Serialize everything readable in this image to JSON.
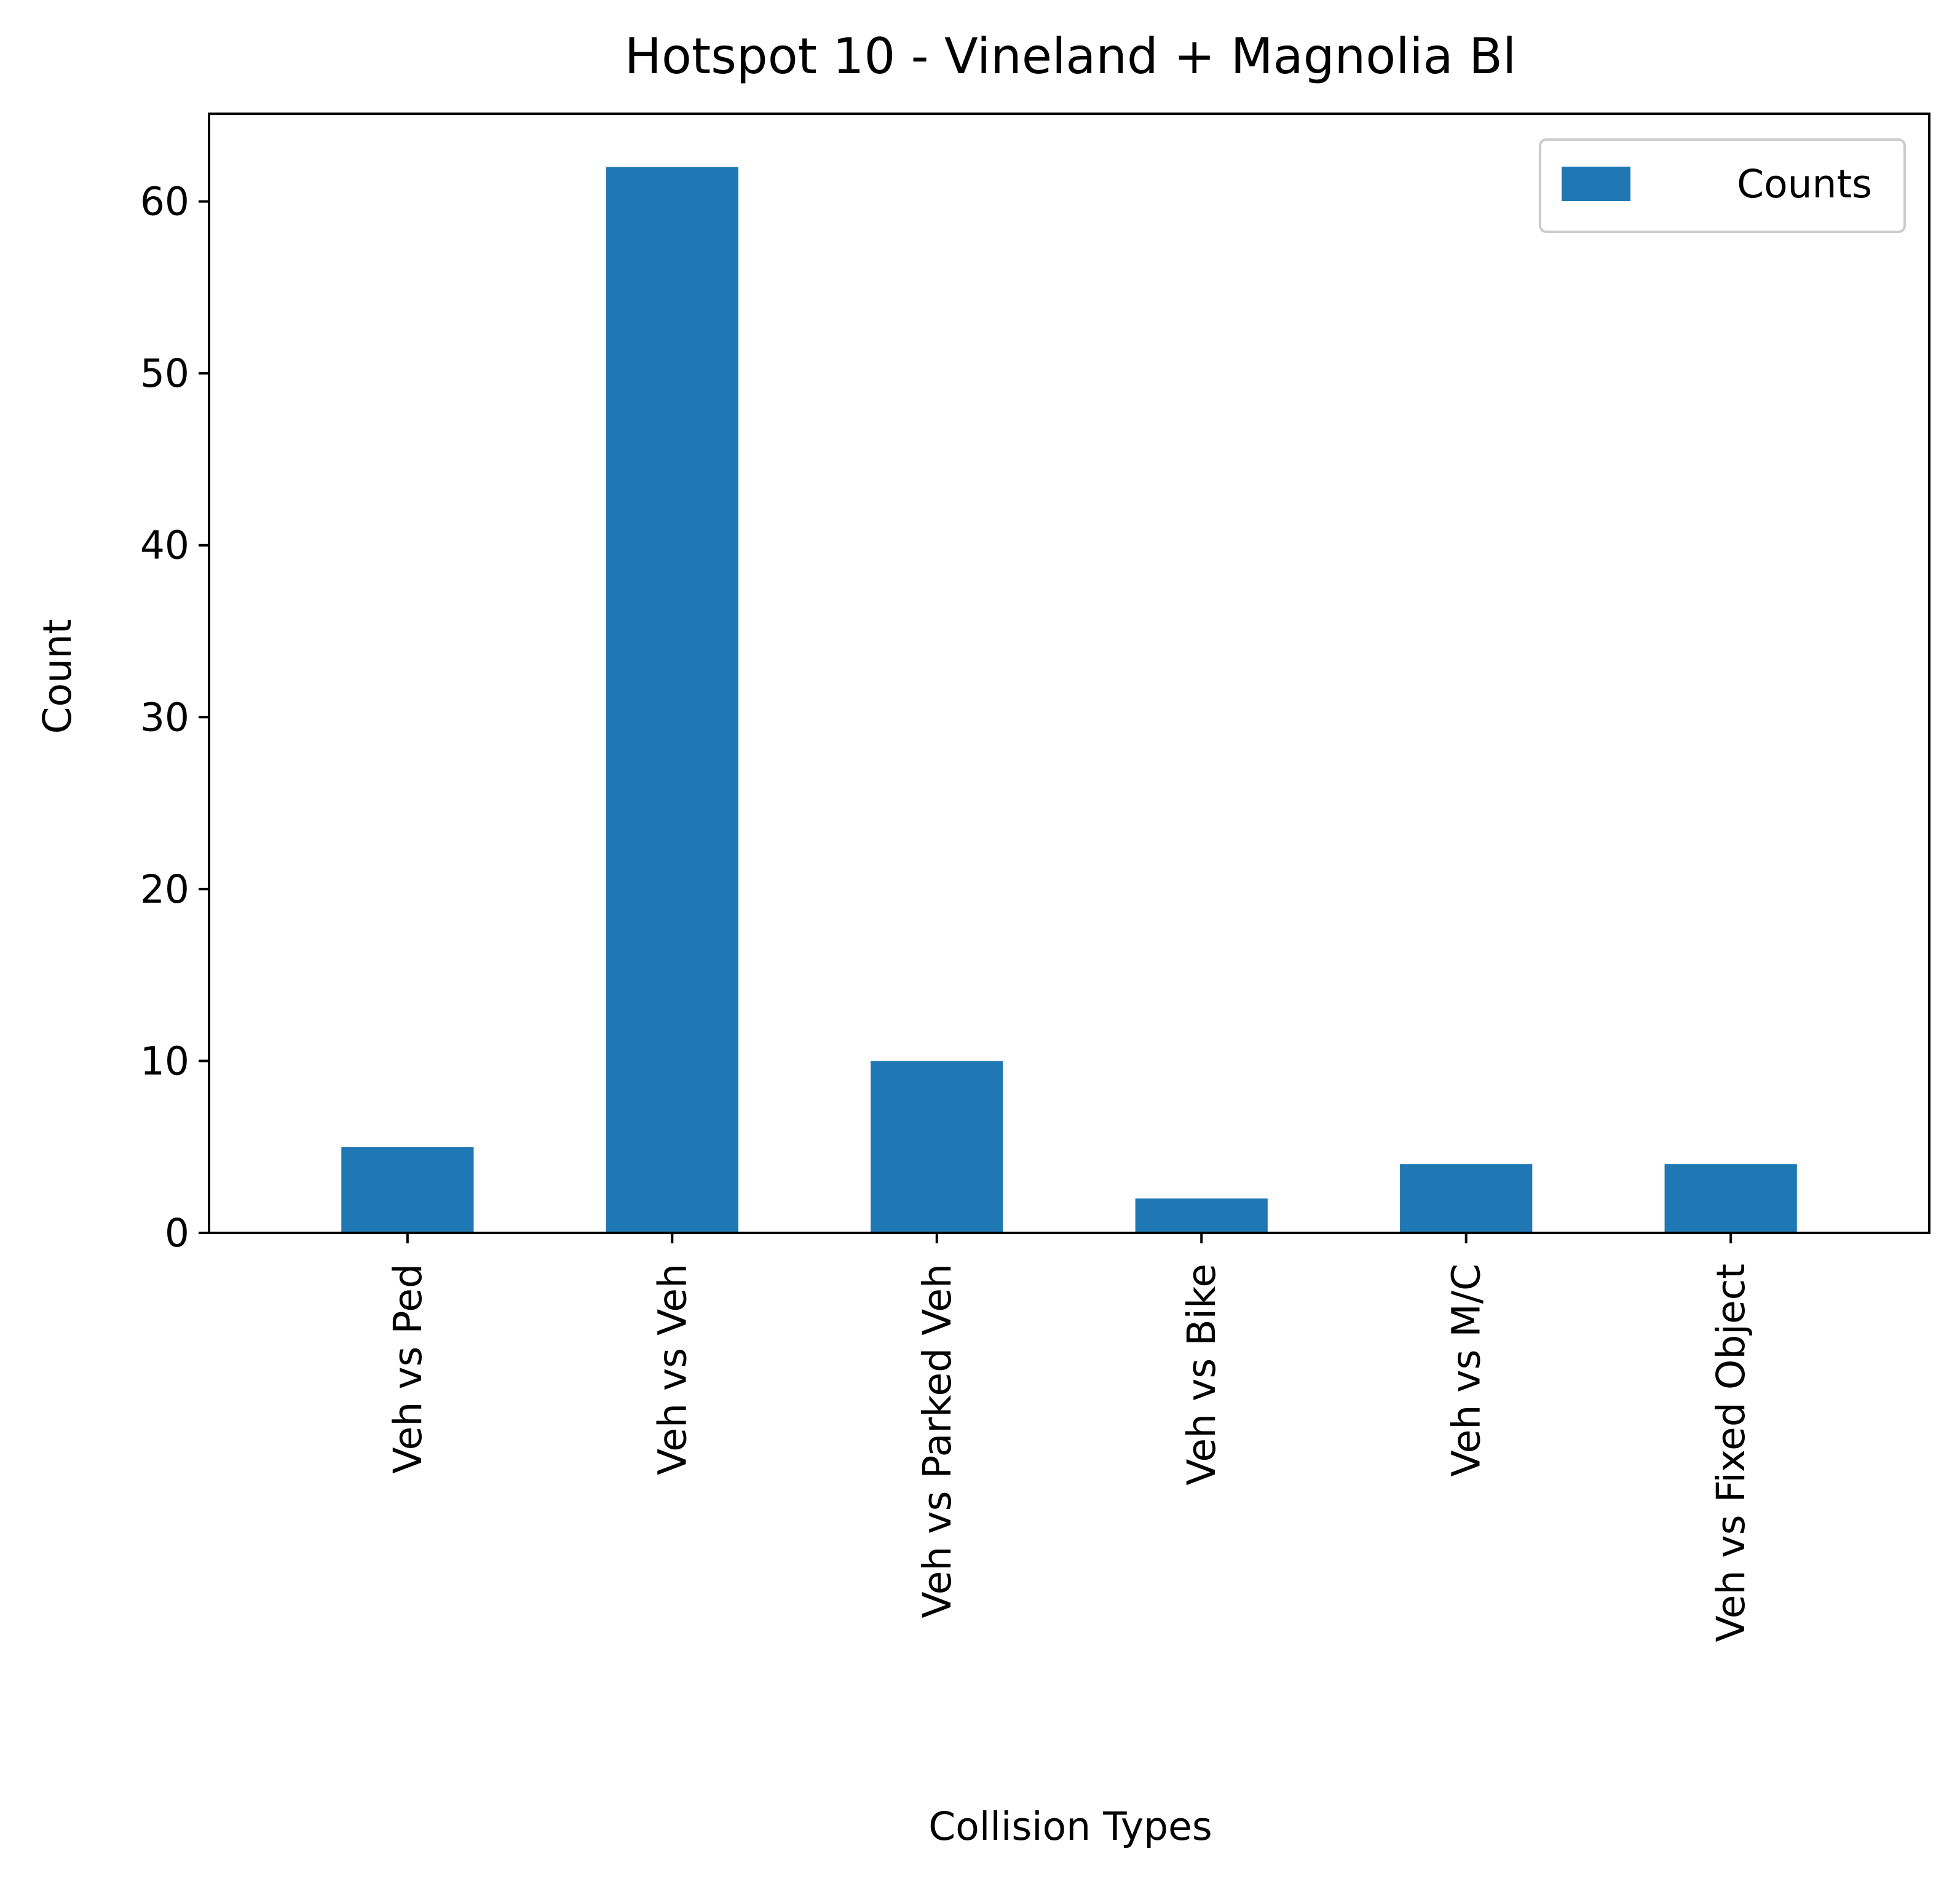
{
  "chart_data": {
    "type": "bar",
    "title": "Hotspot 10 - Vineland + Magnolia Bl",
    "xlabel": "Collision Types",
    "ylabel": "Count",
    "categories": [
      "Veh vs Ped",
      "Veh vs Veh",
      "Veh vs Parked Veh",
      "Veh vs Bike",
      "Veh vs M/C",
      "Veh vs Fixed Object"
    ],
    "series": [
      {
        "name": "Counts",
        "values": [
          5,
          62,
          10,
          2,
          4,
          4
        ],
        "color": "#1f77b4"
      }
    ],
    "ylim": [
      0,
      65.1
    ],
    "yticks": [
      0,
      10,
      20,
      30,
      40,
      50,
      60
    ],
    "grid": false,
    "legend": {
      "position": "top-right",
      "entries": [
        "Counts"
      ]
    }
  }
}
